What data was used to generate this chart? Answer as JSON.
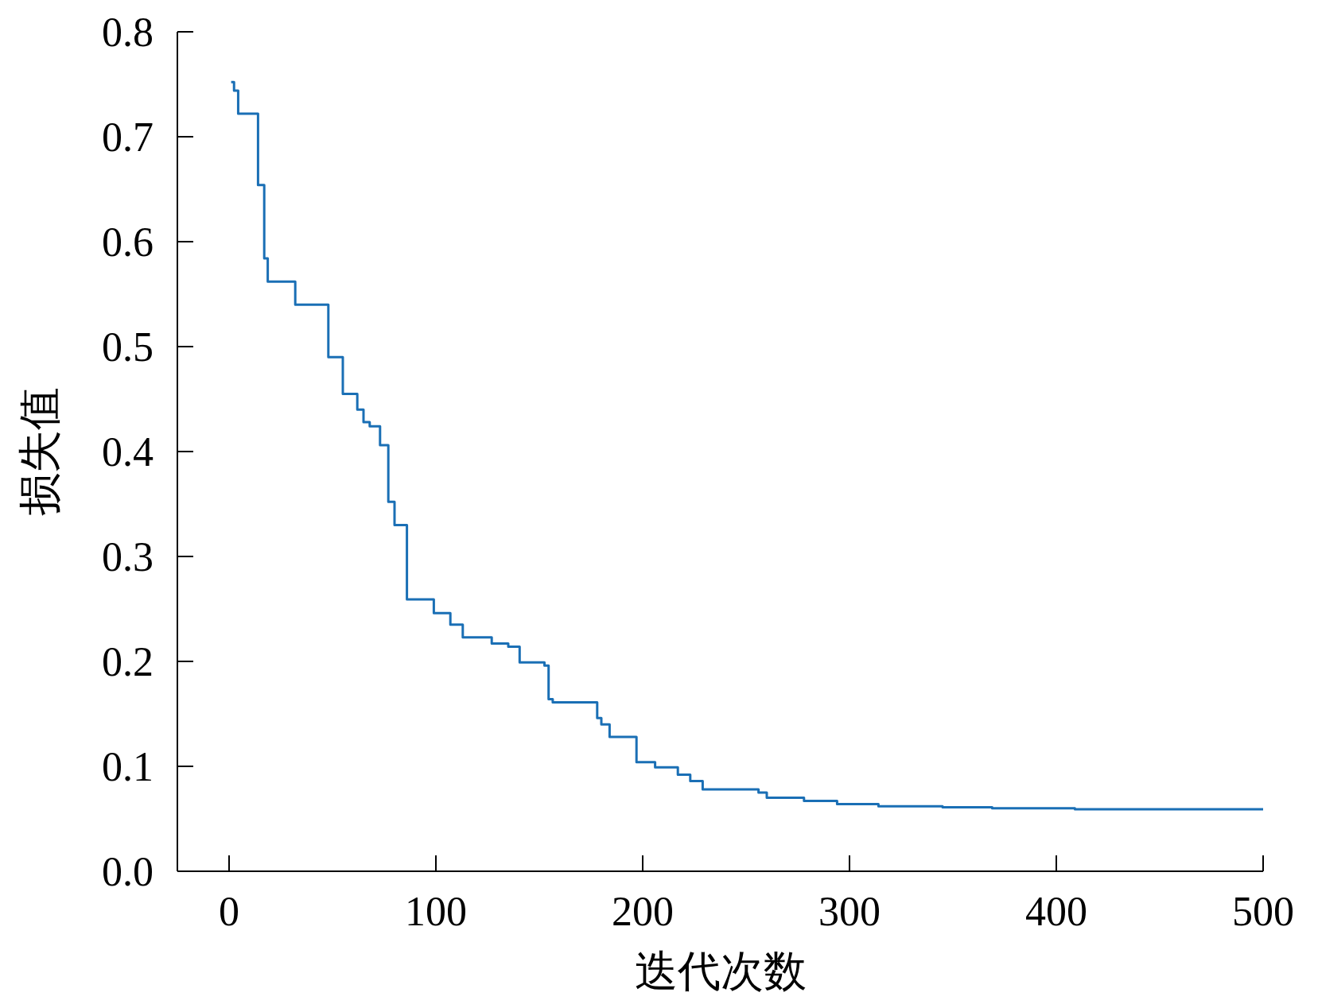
{
  "chart_data": {
    "type": "step",
    "xlabel": "迭代次数",
    "ylabel": "损失值",
    "xlim": [
      -25,
      500
    ],
    "xticks": [
      0,
      100,
      200,
      300,
      400,
      500
    ],
    "ylim": [
      0,
      0.8
    ],
    "yticks": [
      {
        "value": 0,
        "label": "0.0"
      },
      0.1,
      0.2,
      0.3,
      0.4,
      0.5,
      0.6,
      0.7,
      0.8
    ],
    "grid": false,
    "marker": "none",
    "line_style": "solid",
    "series": [
      {
        "color": "#1a6fb5",
        "x": [
          1,
          2.4,
          4.4,
          14,
          17,
          18.7,
          32,
          48,
          55,
          62,
          65,
          68,
          73,
          77,
          80,
          86,
          99,
          107,
          113,
          127,
          135,
          140.5,
          152.5,
          154.5,
          156.5,
          178,
          180,
          184,
          197,
          206,
          217,
          223,
          229,
          256,
          260,
          278,
          294,
          314,
          345,
          369,
          409,
          500
        ],
        "values": [
          0.752,
          0.744,
          0.722,
          0.654,
          0.584,
          0.562,
          0.54,
          0.49,
          0.455,
          0.44,
          0.428,
          0.424,
          0.406,
          0.352,
          0.33,
          0.259,
          0.246,
          0.235,
          0.223,
          0.217,
          0.214,
          0.199,
          0.196,
          0.164,
          0.161,
          0.146,
          0.14,
          0.128,
          0.104,
          0.099,
          0.092,
          0.086,
          0.078,
          0.075,
          0.07,
          0.067,
          0.064,
          0.062,
          0.061,
          0.06,
          0.059,
          0.059
        ]
      }
    ]
  }
}
